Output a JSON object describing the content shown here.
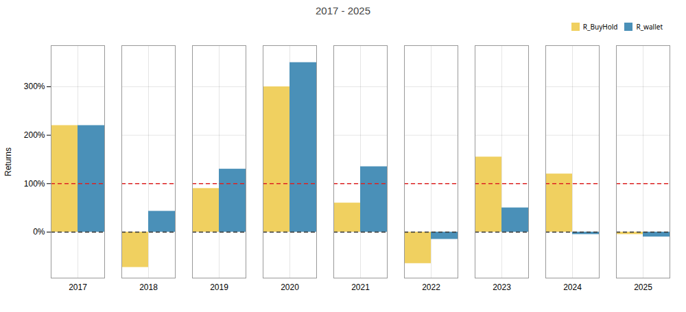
{
  "chart_data": {
    "type": "bar",
    "title": "2017 - 2025",
    "ylabel": "Returns",
    "categories": [
      "2017",
      "2018",
      "2019",
      "2020",
      "2021",
      "2022",
      "2023",
      "2024",
      "2025"
    ],
    "series": [
      {
        "name": "R_BuyHold",
        "color": "#f0d060",
        "values": [
          2.2,
          -0.73,
          0.9,
          3.0,
          0.6,
          -0.65,
          1.55,
          1.2,
          -0.05
        ]
      },
      {
        "name": "R_wallet",
        "color": "#4a90b8",
        "values": [
          2.2,
          0.43,
          1.3,
          3.5,
          1.35,
          -0.15,
          0.5,
          -0.05,
          -0.1
        ]
      }
    ],
    "hlines": [
      {
        "value": 0.0,
        "color": "#333333",
        "line_style": "dashed"
      },
      {
        "value": 1.0,
        "color": "#dd2222",
        "line_style": "dashed"
      }
    ],
    "ylim": [
      -0.95,
      3.85
    ],
    "yticks": [
      {
        "value": 0.0,
        "label": "0%"
      },
      {
        "value": 1.0,
        "label": "100%"
      },
      {
        "value": 2.0,
        "label": "200%"
      },
      {
        "value": 3.0,
        "label": "300%"
      }
    ],
    "grid": true,
    "legend": "upper right"
  }
}
